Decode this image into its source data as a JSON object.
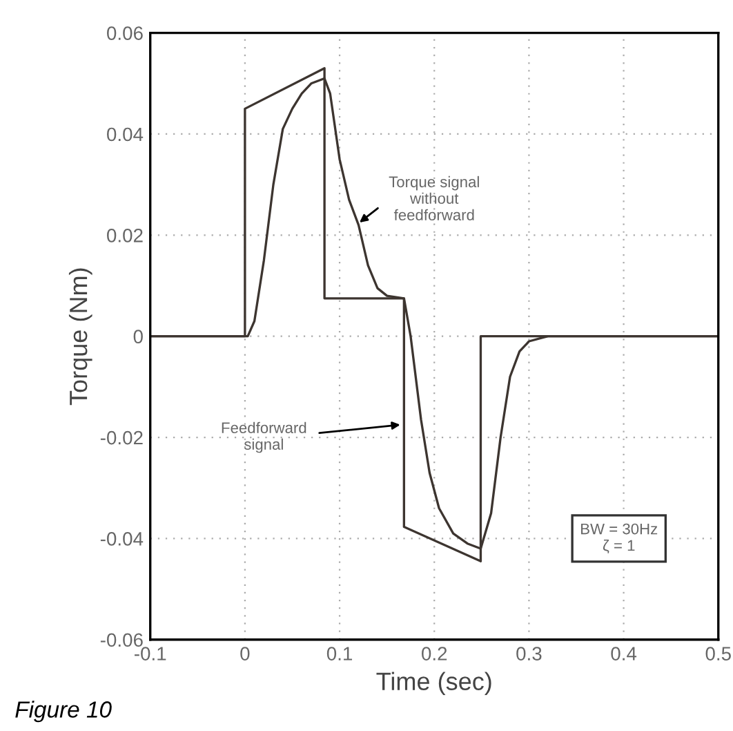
{
  "chart_data": {
    "type": "line",
    "xlabel": "Time (sec)",
    "ylabel": "Torque (Nm)",
    "xlim": [
      -0.1,
      0.5
    ],
    "xticks": [
      -0.1,
      0,
      0.1,
      0.2,
      0.3,
      0.4,
      0.5
    ],
    "ylim": [
      -0.06,
      0.06
    ],
    "yticks": [
      -0.06,
      -0.04,
      -0.02,
      0,
      0.02,
      0.04,
      0.06
    ],
    "grid": true,
    "line_style": "solid",
    "marker": "none",
    "series": [
      {
        "color": "#3d3530",
        "x": [
          -0.1,
          0,
          0,
          0.084,
          0.084,
          0.168,
          0.168,
          0.249,
          0.249,
          0.5
        ],
        "values": [
          0,
          0,
          0.045,
          0.053,
          0.0075,
          0.0075,
          -0.0377,
          -0.0445,
          0,
          0
        ]
      },
      {
        "color": "#3d3530",
        "x": [
          -0.1,
          0.003,
          0.01,
          0.02,
          0.03,
          0.04,
          0.05,
          0.06,
          0.07,
          0.084,
          0.09,
          0.1,
          0.11,
          0.12,
          0.13,
          0.14,
          0.15,
          0.168,
          0.175,
          0.186,
          0.195,
          0.205,
          0.22,
          0.235,
          0.249,
          0.26,
          0.27,
          0.28,
          0.29,
          0.3,
          0.32,
          0.5
        ],
        "values": [
          0,
          0,
          0.003,
          0.015,
          0.03,
          0.041,
          0.045,
          0.048,
          0.05,
          0.051,
          0.048,
          0.035,
          0.027,
          0.022,
          0.014,
          0.0095,
          0.008,
          0.0075,
          0.0,
          -0.0165,
          -0.027,
          -0.034,
          -0.039,
          -0.041,
          -0.042,
          -0.035,
          -0.02,
          -0.008,
          -0.003,
          -0.001,
          0,
          0
        ]
      }
    ],
    "annotations": [
      {
        "text": "Torque signal\nwithout\nfeedforward",
        "x": 0.121,
        "y": 0.0225
      },
      {
        "text": "Feedforward\nsignal",
        "x": 0.164,
        "y": -0.0175
      },
      "BW = 30Hz\nζ = 1",
      "Figure 10"
    ]
  }
}
